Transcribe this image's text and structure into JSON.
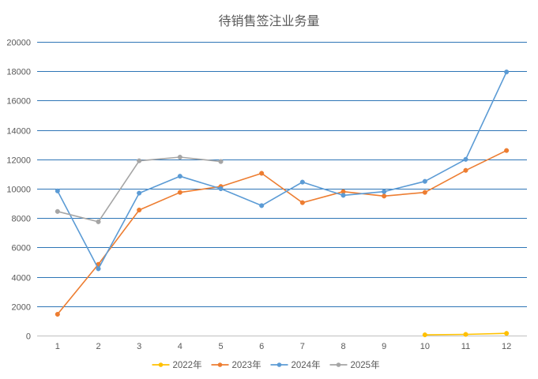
{
  "chart_data": {
    "type": "line",
    "title": "待销售签注业务量",
    "xlabel": "",
    "ylabel": "",
    "categories": [
      "1",
      "2",
      "3",
      "4",
      "5",
      "6",
      "7",
      "8",
      "9",
      "10",
      "11",
      "12"
    ],
    "ylim": [
      0,
      20000
    ],
    "yticks": [
      0,
      2000,
      4000,
      6000,
      8000,
      10000,
      12000,
      14000,
      16000,
      18000,
      20000
    ],
    "grid": true,
    "legend_position": "bottom",
    "series": [
      {
        "name": "2022年",
        "color": "#FFC000",
        "values": [
          null,
          null,
          null,
          null,
          null,
          null,
          null,
          null,
          null,
          50,
          80,
          150
        ]
      },
      {
        "name": "2023年",
        "color": "#ED7D31",
        "values": [
          1450,
          4850,
          8550,
          9750,
          10150,
          11050,
          9050,
          9800,
          9500,
          9750,
          11250,
          12600
        ]
      },
      {
        "name": "2024年",
        "color": "#5B9BD5",
        "values": [
          9850,
          4550,
          9700,
          10850,
          10000,
          8850,
          10450,
          9550,
          9800,
          10500,
          12000,
          17950
        ]
      },
      {
        "name": "2025年",
        "color": "#A5A5A5",
        "values": [
          8450,
          7750,
          11900,
          12150,
          11850,
          null,
          null,
          null,
          null,
          null,
          null,
          null
        ]
      }
    ]
  }
}
